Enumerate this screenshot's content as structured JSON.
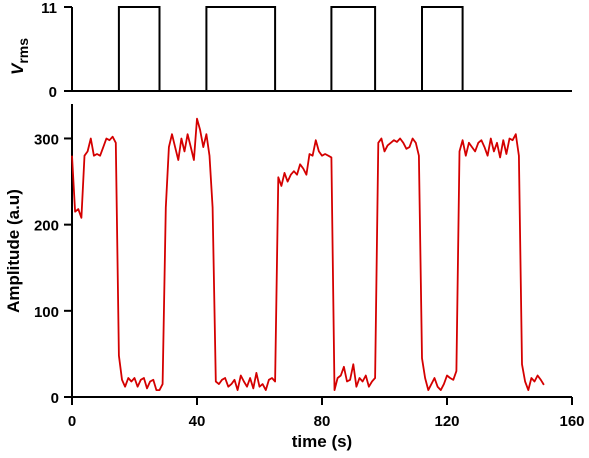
{
  "chart_data": [
    {
      "type": "line",
      "ylabel_main": "V",
      "ylabel_sub": "rms",
      "ylim": [
        0,
        11
      ],
      "yticks": [
        "11",
        "0"
      ],
      "xlim": [
        0,
        160
      ],
      "x": [
        0,
        15,
        15,
        28,
        28,
        43,
        43,
        65,
        65,
        83,
        83,
        97,
        97,
        112,
        112,
        125,
        125,
        160
      ],
      "y": [
        0,
        0,
        11,
        11,
        0,
        0,
        11,
        11,
        0,
        0,
        11,
        11,
        0,
        0,
        11,
        11,
        0,
        0
      ],
      "color": "#000000",
      "grid": false
    },
    {
      "type": "line",
      "ylabel": "Amplitude (a.u)",
      "xlabel": "time (s)",
      "xlim": [
        0,
        160
      ],
      "ylim": [
        0,
        340
      ],
      "xticks": [
        "0",
        "40",
        "80",
        "120",
        "160"
      ],
      "yticks": [
        "0",
        "100",
        "200",
        "300"
      ],
      "color": "#d40000",
      "grid": false,
      "x": [
        0,
        1,
        2,
        3,
        4,
        5,
        6,
        7,
        8,
        9,
        10,
        11,
        12,
        13,
        14,
        15,
        16,
        17,
        18,
        19,
        20,
        21,
        22,
        23,
        24,
        25,
        26,
        27,
        28,
        29,
        30,
        31,
        32,
        33,
        34,
        35,
        36,
        37,
        38,
        39,
        40,
        41,
        42,
        43,
        44,
        45,
        46,
        47,
        48,
        49,
        50,
        51,
        52,
        53,
        54,
        55,
        56,
        57,
        58,
        59,
        60,
        61,
        62,
        63,
        64,
        65,
        66,
        67,
        68,
        69,
        70,
        71,
        72,
        73,
        74,
        75,
        76,
        77,
        78,
        79,
        80,
        81,
        82,
        83,
        84,
        85,
        86,
        87,
        88,
        89,
        90,
        91,
        92,
        93,
        94,
        95,
        96,
        97,
        98,
        99,
        100,
        101,
        102,
        103,
        104,
        105,
        106,
        107,
        108,
        109,
        110,
        111,
        112,
        113,
        114,
        115,
        116,
        117,
        118,
        119,
        120,
        121,
        122,
        123,
        124,
        125,
        126,
        127,
        128,
        129,
        130,
        131,
        132,
        133,
        134,
        135,
        136,
        137,
        138,
        139,
        140,
        141,
        142,
        143,
        144,
        145,
        146,
        147,
        148,
        149,
        150,
        151
      ],
      "y": [
        280,
        215,
        218,
        208,
        280,
        285,
        300,
        280,
        282,
        280,
        290,
        300,
        298,
        302,
        295,
        48,
        20,
        12,
        22,
        18,
        22,
        12,
        20,
        22,
        10,
        18,
        20,
        8,
        8,
        15,
        220,
        290,
        305,
        290,
        275,
        300,
        285,
        305,
        290,
        275,
        323,
        310,
        290,
        305,
        280,
        220,
        18,
        15,
        20,
        22,
        12,
        15,
        20,
        8,
        25,
        18,
        12,
        22,
        10,
        28,
        12,
        15,
        8,
        20,
        22,
        18,
        255,
        245,
        260,
        250,
        258,
        262,
        258,
        270,
        265,
        258,
        282,
        280,
        298,
        285,
        280,
        282,
        280,
        278,
        8,
        22,
        25,
        35,
        18,
        20,
        38,
        12,
        22,
        18,
        25,
        12,
        18,
        22,
        295,
        300,
        285,
        292,
        295,
        298,
        296,
        300,
        295,
        288,
        290,
        300,
        295,
        280,
        45,
        22,
        8,
        15,
        22,
        12,
        8,
        15,
        25,
        22,
        20,
        30,
        285,
        298,
        280,
        295,
        290,
        285,
        295,
        298,
        290,
        280,
        300,
        285,
        295,
        278,
        298,
        282,
        300,
        298,
        305,
        280,
        38,
        18,
        8,
        22,
        18,
        25,
        20,
        14
      ]
    }
  ]
}
